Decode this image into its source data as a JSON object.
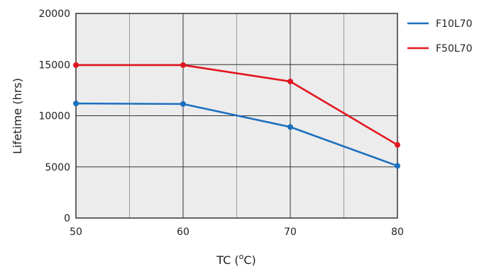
{
  "chart_data": {
    "type": "line",
    "title": "",
    "xlabel": "TC (°C)",
    "ylabel": "Lifetime (hrs)",
    "xlim": [
      50,
      80
    ],
    "ylim": [
      0,
      20000
    ],
    "x_ticks": [
      "50",
      "60",
      "70",
      "80"
    ],
    "y_ticks": [
      "0",
      "5000",
      "10000",
      "15000",
      "20000"
    ],
    "grid": true,
    "legend_position": "right",
    "series": [
      {
        "name": "F10L70",
        "color": "#1a6fbf",
        "x": [
          50,
          60,
          70,
          80
        ],
        "y": [
          11200,
          11150,
          8900,
          5100
        ]
      },
      {
        "name": "F50L70",
        "color": "#e2151f",
        "x": [
          50,
          60,
          70,
          80
        ],
        "y": [
          14950,
          14950,
          13350,
          7150
        ]
      }
    ]
  }
}
